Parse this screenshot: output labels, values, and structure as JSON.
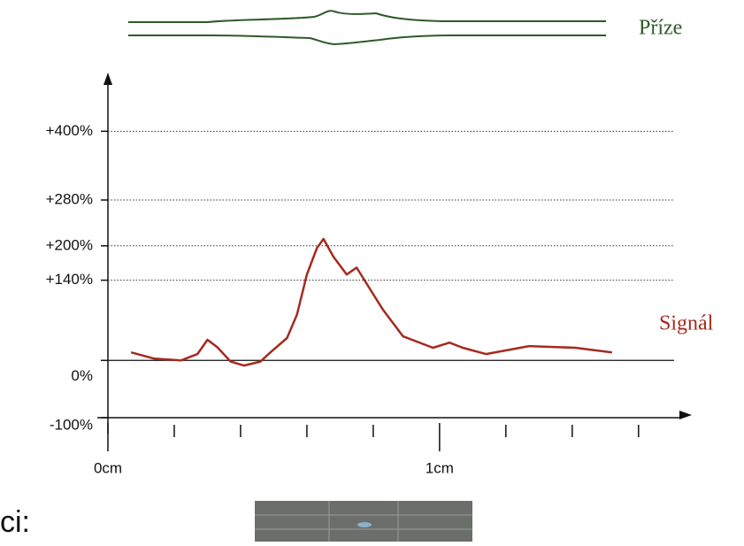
{
  "chart_data": {
    "type": "line",
    "yarn_label": "Příze",
    "xticks": [
      {
        "value": 0,
        "label": "0cm"
      },
      {
        "value": 1,
        "label": "1cm"
      }
    ],
    "xminor_ticks": [
      0.2,
      0.4,
      0.6,
      0.8,
      1.2,
      1.4,
      1.6
    ],
    "xlim": [
      0,
      1.75
    ],
    "ylim": [
      -100,
      500
    ],
    "yticks": [
      {
        "value": 400,
        "label": "+400%"
      },
      {
        "value": 280,
        "label": "+280%"
      },
      {
        "value": 200,
        "label": "+200%"
      },
      {
        "value": 140,
        "label": "+140%"
      },
      {
        "value": 0,
        "label": "0%"
      },
      {
        "value": -100,
        "label": "-100%"
      }
    ],
    "grid": true,
    "series": [
      {
        "name": "Signál",
        "color": "#a52a1f",
        "x": [
          0.07,
          0.14,
          0.22,
          0.27,
          0.3,
          0.33,
          0.37,
          0.41,
          0.46,
          0.49,
          0.54,
          0.57,
          0.6,
          0.63,
          0.65,
          0.68,
          0.72,
          0.75,
          0.78,
          0.83,
          0.89,
          0.98,
          1.03,
          1.07,
          1.14,
          1.27,
          1.41,
          1.52
        ],
        "values": [
          14,
          3,
          0,
          11,
          36,
          23,
          -2,
          -9,
          -2,
          14,
          39,
          80,
          150,
          196,
          212,
          181,
          150,
          162,
          134,
          88,
          42,
          22,
          31,
          22,
          11,
          25,
          22,
          14
        ]
      }
    ],
    "footer_text": "ci:"
  }
}
